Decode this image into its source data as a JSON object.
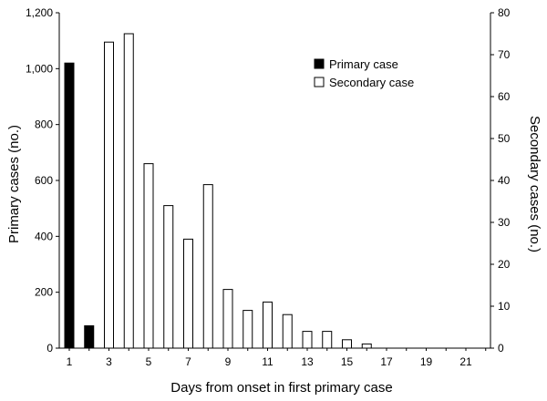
{
  "chart_data": {
    "type": "bar",
    "title": "",
    "xlabel": "Days from onset in first primary case",
    "ylabel_left": "Primary cases (no.)",
    "ylabel_right": "Secondary cases (no.)",
    "ylim_left": [
      0,
      1200
    ],
    "ylim_right": [
      0,
      80
    ],
    "yticks_left": [
      "0",
      "200",
      "400",
      "600",
      "800",
      "1,000",
      "1,200"
    ],
    "yticks_right": [
      "0",
      "10",
      "20",
      "30",
      "40",
      "50",
      "60",
      "70",
      "80"
    ],
    "xlim": [
      1,
      22
    ],
    "xtick_labels": [
      "1",
      "3",
      "5",
      "7",
      "9",
      "11",
      "13",
      "15",
      "17",
      "19",
      "21"
    ],
    "legend_position": "top-right",
    "grid": false,
    "series": [
      {
        "name": "Primary case",
        "axis": "left",
        "fill": "#000000",
        "x": [
          1,
          2
        ],
        "values": [
          1020,
          80
        ]
      },
      {
        "name": "Secondary case",
        "axis": "right",
        "fill": "#ffffff",
        "x": [
          3,
          4,
          5,
          6,
          7,
          8,
          9,
          10,
          11,
          12,
          13,
          14,
          15,
          16
        ],
        "values": [
          73,
          75,
          44,
          34,
          26,
          39,
          14,
          9,
          11,
          8,
          4,
          4,
          2,
          1
        ]
      }
    ]
  }
}
